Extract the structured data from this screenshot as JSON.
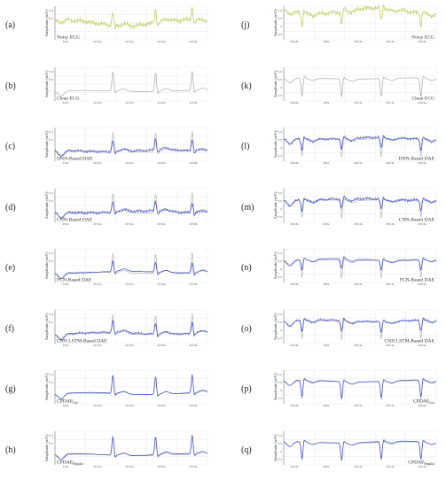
{
  "y_label": "Amplitude (mV)",
  "colors": {
    "noisy": "#b9c34a",
    "clean": "#a9a9a9",
    "denoised": "#3b46c8",
    "grid": "#e3e3e3"
  },
  "columns": [
    {
      "x_ticks": [
        "215s",
        "215.2s",
        "215.4s",
        "215.6s",
        "215.8s"
      ],
      "y_ticks": [
        "1.0",
        "0.5"
      ],
      "panels": [
        {
          "letter": "(a)",
          "label": "Noisy ECG",
          "sub": "",
          "kind": "noisy"
        },
        {
          "letter": "(b)",
          "label": "Clean ECG",
          "sub": "",
          "kind": "clean"
        },
        {
          "letter": "(c)",
          "label": "DNN-Based DAE",
          "sub": "",
          "kind": "denoised"
        },
        {
          "letter": "(d)",
          "label": "CNN-Based DAE",
          "sub": "",
          "kind": "denoised"
        },
        {
          "letter": "(e)",
          "label": "FCN-Based DAE",
          "sub": "",
          "kind": "denoised"
        },
        {
          "letter": "(f)",
          "label": "CNN LSTM-Based DAE",
          "sub": "",
          "kind": "denoised"
        },
        {
          "letter": "(g)",
          "label": "CPDAE",
          "sub": "Lite",
          "kind": "denoised"
        },
        {
          "letter": "(h)",
          "label": "CPDAE",
          "sub": "Regular",
          "kind": "denoised"
        }
      ]
    },
    {
      "x_ticks": [
        "204.8s",
        "205s",
        "205.2s",
        "205.4s",
        "205.6s"
      ],
      "y_ticks": [
        "1.0",
        "0.5",
        "0",
        "-0.5"
      ],
      "panels": [
        {
          "letter": "(j)",
          "label": "Noisy ECG",
          "sub": "",
          "kind": "noisy"
        },
        {
          "letter": "(k)",
          "label": "Clean ECG",
          "sub": "",
          "kind": "clean"
        },
        {
          "letter": "(l)",
          "label": "DNN-Based DAE",
          "sub": "",
          "kind": "denoised"
        },
        {
          "letter": "(m)",
          "label": "CNN-Based DAE",
          "sub": "",
          "kind": "denoised"
        },
        {
          "letter": "(n)",
          "label": "FCN-Based DAE",
          "sub": "",
          "kind": "denoised"
        },
        {
          "letter": "(o)",
          "label": "CNN LSTM-Based DAE",
          "sub": "",
          "kind": "denoised"
        },
        {
          "letter": "(p)",
          "label": "CPDAE",
          "sub": "Lite",
          "kind": "denoised"
        },
        {
          "letter": "(q)",
          "label": "CPDAE",
          "sub": "Regular",
          "kind": "denoised"
        }
      ]
    }
  ],
  "chart_data": [
    {
      "type": "line",
      "series": [
        {
          "values": [
            0.6,
            0.75,
            0.9,
            0.85,
            0.88,
            0.95,
            0.8,
            1.1,
            0.9,
            0.85,
            0.8,
            0.78,
            0.9,
            0.75,
            1.05,
            0.6,
            0.4
          ]
        }
      ]
    },
    {
      "type": "line",
      "series": [
        {
          "values": [
            0.55,
            0.35,
            0.4,
            0.4,
            0.42,
            0.95,
            0.42,
            0.43,
            0.45,
            0.95,
            0.4,
            0.45,
            0.95,
            0.35,
            0.5
          ]
        }
      ]
    },
    {
      "type": "line",
      "series": [
        {
          "name": "DNN-Based DAE",
          "values": [
            0.45,
            0.4,
            0.45,
            0.47,
            0.5,
            0.7,
            0.48,
            0.5,
            0.52,
            0.75,
            0.5,
            0.5,
            0.95,
            0.45,
            0.5
          ]
        }
      ]
    },
    {
      "type": "line",
      "series": [
        {
          "name": "CNN-Based DAE",
          "values": [
            0.5,
            0.38,
            0.45,
            0.47,
            0.5,
            0.65,
            0.5,
            0.55,
            0.55,
            0.7,
            0.5,
            0.5,
            0.92,
            0.4,
            0.5
          ]
        }
      ]
    },
    {
      "type": "line",
      "series": [
        {
          "name": "FCN-Based DAE",
          "values": [
            0.5,
            0.36,
            0.42,
            0.42,
            0.44,
            0.9,
            0.42,
            0.44,
            0.46,
            0.6,
            0.44,
            0.46,
            0.95,
            0.35,
            0.5
          ]
        }
      ]
    },
    {
      "type": "line",
      "series": [
        {
          "name": "CNN LSTM-Based DAE",
          "values": [
            0.55,
            0.35,
            0.45,
            0.46,
            0.48,
            0.7,
            0.46,
            0.5,
            0.55,
            0.85,
            0.5,
            0.5,
            0.92,
            0.38,
            0.52
          ]
        }
      ]
    },
    {
      "type": "line",
      "series": [
        {
          "name": "CPDAE Lite",
          "values": [
            0.55,
            0.38,
            0.42,
            0.42,
            0.44,
            0.92,
            0.42,
            0.44,
            0.46,
            0.93,
            0.42,
            0.45,
            0.95,
            0.36,
            0.5
          ]
        }
      ]
    },
    {
      "type": "line",
      "series": [
        {
          "name": "CPDAE Regular",
          "values": [
            0.55,
            0.36,
            0.41,
            0.41,
            0.43,
            0.94,
            0.41,
            0.43,
            0.45,
            0.95,
            0.41,
            0.45,
            0.96,
            0.35,
            0.5
          ]
        }
      ]
    },
    {
      "type": "line",
      "series": [
        {
          "values": [
            0.4,
            0.6,
            0.3,
            0.5,
            0.2,
            0.7,
            -0.3,
            0.6,
            0.1,
            0.8,
            -0.4,
            0.9,
            0.5,
            0.7,
            0.6
          ]
        }
      ]
    },
    {
      "type": "line",
      "series": [
        {
          "values": [
            0.3,
            -0.9,
            0.1,
            0.15,
            0.2,
            -0.9,
            0.2,
            0.2,
            0.15,
            -0.9,
            0.2,
            0.25,
            -0.9,
            0.2,
            0.3
          ]
        }
      ]
    }
  ]
}
